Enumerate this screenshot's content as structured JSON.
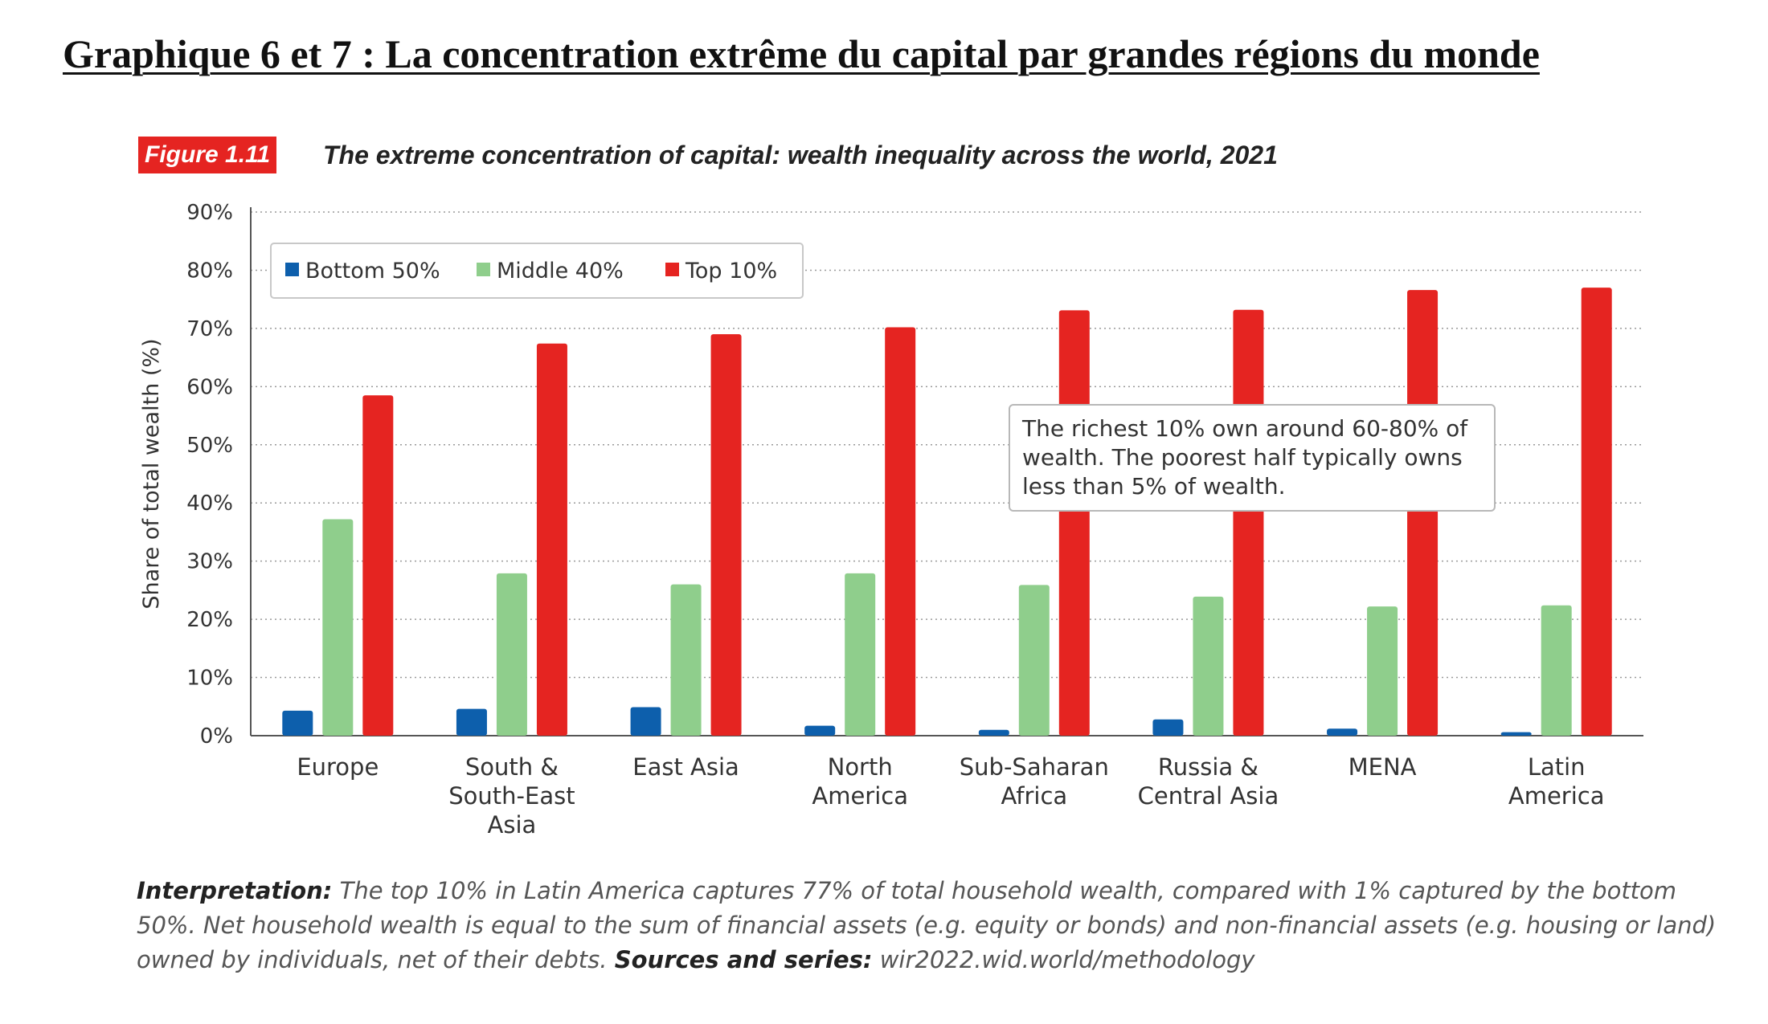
{
  "page_heading": "Graphique 6 et 7 : La concentration extrême du capital par grandes régions du monde",
  "figure_tag": "Figure 1.11",
  "figure_title": "The extreme concentration of capital: wealth inequality across the world, 2021",
  "chart_data": {
    "type": "bar",
    "title": "The extreme concentration of capital: wealth inequality across the world, 2021",
    "xlabel": "",
    "ylabel": "Share of total wealth (%)",
    "ylim": [
      0,
      90
    ],
    "yticks": [
      "0%",
      "10%",
      "20%",
      "30%",
      "40%",
      "50%",
      "60%",
      "70%",
      "80%",
      "90%"
    ],
    "grid": true,
    "legend_placement": "top-left",
    "categories": [
      [
        "Europe"
      ],
      [
        "South &",
        "South-East",
        "Asia"
      ],
      [
        "East Asia"
      ],
      [
        "North",
        "America"
      ],
      [
        "Sub-Saharan",
        "Africa"
      ],
      [
        "Russia &",
        "Central Asia"
      ],
      [
        "MENA"
      ],
      [
        "Latin",
        "America"
      ]
    ],
    "series": [
      {
        "name": "Bottom 50%",
        "color": "#0d5fac",
        "values": [
          4.3,
          4.6,
          4.9,
          1.7,
          1.0,
          2.8,
          1.2,
          0.6
        ]
      },
      {
        "name": "Middle 40%",
        "color": "#8fce8c",
        "values": [
          37.2,
          27.9,
          26.0,
          27.9,
          25.9,
          23.9,
          22.2,
          22.4
        ]
      },
      {
        "name": "Top 10%",
        "color": "#e52421",
        "values": [
          58.5,
          67.4,
          69.0,
          70.2,
          73.1,
          73.2,
          76.6,
          77.0
        ]
      }
    ],
    "annotation": [
      "The richest 10% own around 60-80% of",
      "wealth. The poorest half typically owns",
      "less than 5% of wealth."
    ]
  },
  "footnote": {
    "interp_label": "Interpretation:",
    "interp_text": " The top 10% in Latin America captures 77% of total household wealth, compared with 1% captured by the bottom 50%. Net household wealth is equal to the sum of financial assets (e.g. equity or bonds) and non-financial assets (e.g. housing or land) owned by individuals, net of their debts. ",
    "sources_label": "Sources and series:",
    "sources_text": " wir2022.wid.world/methodology"
  }
}
